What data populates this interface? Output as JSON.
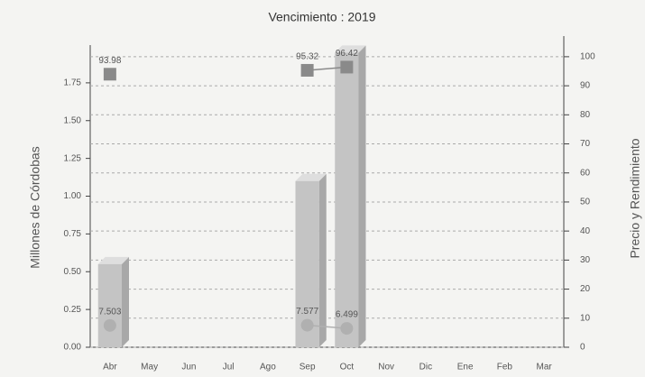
{
  "chart_data": {
    "type": "bar",
    "title": "Vencimiento : 2019",
    "y_label": "Millones de Córdobas",
    "y2_label": "Precio y Rendimiento",
    "categories": [
      "Abr",
      "May",
      "Jun",
      "Jul",
      "Ago",
      "Sep",
      "Oct",
      "Nov",
      "Dic",
      "Ene",
      "Feb",
      "Mar"
    ],
    "ylim": [
      0,
      2
    ],
    "yticks": [
      {
        "value": 0,
        "label": "0.00"
      },
      0.25,
      {
        "value": 0.5,
        "label": "0.50"
      },
      0.75,
      {
        "value": 1,
        "label": "1.00"
      },
      1.25,
      {
        "value": 1.5,
        "label": "1.50"
      },
      1.75
    ],
    "y2lim": [
      0,
      104
    ],
    "y2ticks": [
      0,
      10,
      20,
      30,
      40,
      50,
      60,
      70,
      80,
      90,
      100
    ],
    "grid": true,
    "series": [
      {
        "color": "#c4c4c4",
        "marker": "bar",
        "values": [
          0.55,
          null,
          null,
          null,
          null,
          1.1,
          1.95,
          null,
          null,
          null,
          null,
          null
        ]
      },
      {
        "color": "#8a8a8a",
        "axis": "y2",
        "marker": "square",
        "values": [
          93.98,
          null,
          null,
          null,
          null,
          95.32,
          96.42,
          null,
          null,
          null,
          null,
          null
        ]
      },
      {
        "color": "#b0b0b0",
        "axis": "y2",
        "marker": "circle",
        "values": [
          7.503,
          null,
          null,
          null,
          null,
          7.577,
          6.499,
          null,
          null,
          null,
          null,
          null
        ]
      }
    ]
  }
}
